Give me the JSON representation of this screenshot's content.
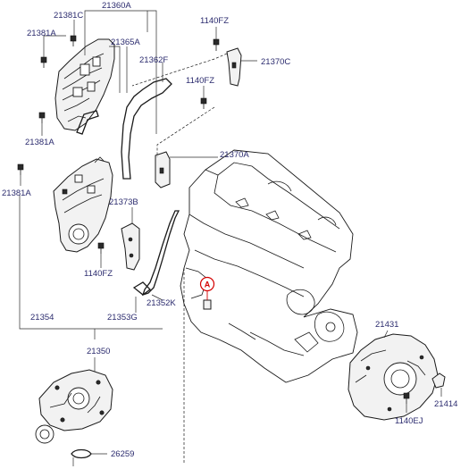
{
  "parts": {
    "p21360A": "21360A",
    "p21381C": "21381C",
    "p21381A_top": "21381A",
    "p21365A": "21365A",
    "p1140FZ_top": "1140FZ",
    "p21370C": "21370C",
    "p21362F": "21362F",
    "p1140FZ_mid": "1140FZ",
    "p21381A_mid": "21381A",
    "p21370A": "21370A",
    "p21381A_left": "21381A",
    "p21373B": "21373B",
    "p1140FZ_low": "1140FZ",
    "p21354": "21354",
    "p21353G": "21353G",
    "p21352K": "21352K",
    "p21431": "21431",
    "p21350": "21350",
    "p21414": "21414",
    "p1140EJ": "1140EJ",
    "p26259": "26259"
  },
  "callout": {
    "label": "A",
    "color": "#d40000"
  },
  "colors": {
    "label": "#2b2b6e",
    "line": "#1a1a1a"
  }
}
